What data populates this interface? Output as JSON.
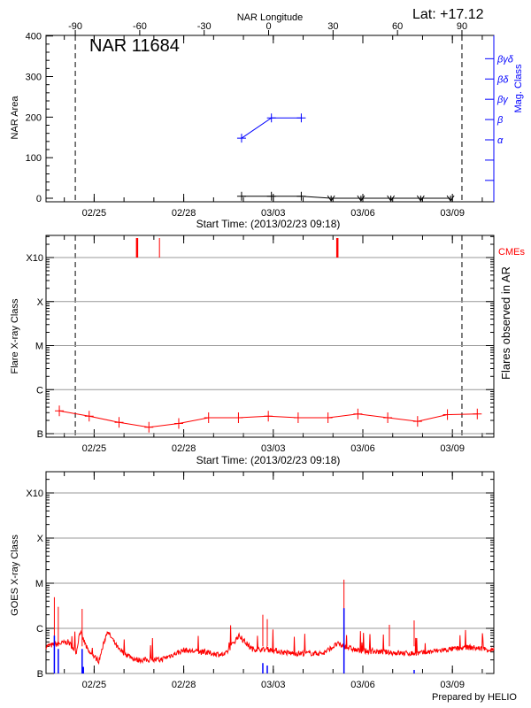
{
  "header": {
    "lat_label": "Lat: +17.12",
    "footer": "Prepared by HELIO"
  },
  "colors": {
    "axis": "#000000",
    "mag_class": "#0000ff",
    "flare": "#ff0000",
    "cme": "#ff0000",
    "goes_flux": "#ff0000",
    "goes_events": "#0000ff",
    "grid": "#999999"
  },
  "chart_data": [
    {
      "type": "line",
      "title": "NAR 11684",
      "top_xlabel": "NAR Longitude",
      "top_xticks": [
        -90,
        -60,
        -30,
        0,
        30,
        60,
        90
      ],
      "xlabel": "Start Time: (2013/02/23 09:18)",
      "ylabel": "NAR Area",
      "y2label": "Mag. Class",
      "xlim": [
        "2013-02-23T09:18",
        "2013-03-10T09:18"
      ],
      "xticks": [
        {
          "date": "2013-02-25T00:00",
          "label": "02/25"
        },
        {
          "date": "2013-02-28T00:00",
          "label": "02/28"
        },
        {
          "date": "2013-03-03T00:00",
          "label": "03/03"
        },
        {
          "date": "2013-03-06T00:00",
          "label": "03/06"
        },
        {
          "date": "2013-03-09T00:00",
          "label": "03/09"
        }
      ],
      "ylim": [
        0,
        400
      ],
      "yticks": [
        0,
        100,
        200,
        300,
        400
      ],
      "y2_levels": [
        "",
        "",
        "α",
        "β",
        "βγ",
        "βδ",
        "βγδ"
      ],
      "limb_lines": [
        "2013-02-24T08:50",
        "2013-03-09T07:40"
      ],
      "area": {
        "x": [
          "2013-03-01T22:30",
          "2013-03-02T22:30",
          "2013-03-03T22:30",
          "2013-03-04T22:30",
          "2013-03-05T22:30",
          "2013-03-06T22:30",
          "2013-03-07T22:30",
          "2013-03-08T22:30"
        ],
        "y": [
          5,
          5,
          5,
          0,
          0,
          0,
          0,
          0
        ]
      },
      "mag_class": {
        "x": [
          "2013-03-01T22:30",
          "2013-03-02T22:30",
          "2013-03-03T22:30"
        ],
        "y": [
          "α",
          "β",
          "β"
        ]
      }
    },
    {
      "type": "line",
      "xlabel": "Start Time: (2013/02/23 09:18)",
      "ylabel": "Flare X-ray Class",
      "y2label": "Flares observed in AR",
      "cme_label": "CMEs",
      "yscale": "log",
      "yticks": [
        {
          "label": "B",
          "class": "B1"
        },
        {
          "label": "C",
          "class": "C1"
        },
        {
          "label": "M",
          "class": "M1"
        },
        {
          "label": "X",
          "class": "X1"
        },
        {
          "label": "X10",
          "class": "X10"
        }
      ],
      "grid": true,
      "limb_lines": [
        "2013-02-24T08:50",
        "2013-03-09T07:40"
      ],
      "flares": {
        "x": [
          "2013-02-23T20:00",
          "2013-02-24T20:00",
          "2013-02-25T20:00",
          "2013-02-26T20:00",
          "2013-02-27T20:00",
          "2013-02-28T20:00",
          "2013-03-01T20:00",
          "2013-03-02T20:00",
          "2013-03-03T20:00",
          "2013-03-04T20:00",
          "2013-03-05T20:00",
          "2013-03-06T20:00",
          "2013-03-07T20:00",
          "2013-03-08T20:00",
          "2013-03-09T20:00"
        ],
        "y": [
          "B3.3",
          "B2.5",
          "B1.8",
          "B1.4",
          "B1.7",
          "B2.3",
          "B2.3",
          "B2.5",
          "B2.3",
          "B2.3",
          "B2.8",
          "B2.3",
          "B1.9",
          "B2.7",
          "B2.8"
        ]
      },
      "cmes": [
        {
          "date": "2013-02-26T10:30",
          "width": "wide"
        },
        {
          "date": "2013-02-27T04:30",
          "width": "narrow"
        },
        {
          "date": "2013-03-05T03:30",
          "width": "wide"
        }
      ]
    },
    {
      "type": "line",
      "ylabel": "GOES X-ray Class",
      "yscale": "log",
      "grid": true,
      "background": {
        "x": [
          "2013-02-23T09:18",
          "2013-02-24T03:05",
          "2013-02-24T09:45",
          "2013-02-24T12:30",
          "2013-02-24T19:25",
          "2013-02-25T03:50",
          "2013-02-25T10:30",
          "2013-02-25T20:05",
          "2013-02-26T09:45",
          "2013-02-27T04:55",
          "2013-02-28T00:10",
          "2013-02-28T22:00",
          "2013-03-01T09:18",
          "2013-03-01T20:05",
          "2013-03-02T06:55",
          "2013-03-02T23:10",
          "2013-03-03T12:55",
          "2013-03-04T16:15",
          "2013-03-05T03:20",
          "2013-03-05T19:40",
          "2013-03-07T09:18",
          "2013-03-07T21:18",
          "2013-03-08T16:30",
          "2013-03-09T14:05",
          "2013-03-10T09:18"
        ],
        "y": [
          "B4.0",
          "B5.0",
          "B3.0",
          "B8.7",
          "B3.0",
          "B1.9",
          "B8.7",
          "B3.3",
          "B2.0",
          "B2.0",
          "B3.3",
          "B2.8",
          "B2.6",
          "B6.9",
          "B3.5",
          "B3.3",
          "B2.8",
          "B2.8",
          "B4.5",
          "B3.2",
          "B2.8",
          "B2.8",
          "B3.3",
          "B3.8",
          "B3.3"
        ]
      },
      "peaks": [
        {
          "date": "2013-02-23T16:00",
          "class": "C4.9"
        },
        {
          "date": "2013-02-23T19:10",
          "class": "C3.0"
        },
        {
          "date": "2013-02-24T14:20",
          "class": "C2.7"
        },
        {
          "date": "2013-03-02T15:35",
          "class": "C2.0"
        },
        {
          "date": "2013-03-02T19:10",
          "class": "C1.6"
        },
        {
          "date": "2013-03-05T08:50",
          "class": "M1.2"
        },
        {
          "date": "2013-03-06T21:20",
          "class": "C1.2"
        },
        {
          "date": "2013-03-07T17:15",
          "class": "C1.5"
        }
      ],
      "events": [
        {
          "date": "2013-02-23T16:00",
          "class": "B6.9"
        },
        {
          "date": "2013-02-23T19:10",
          "class": "B3.5"
        },
        {
          "date": "2013-02-24T14:20",
          "class": "B3.5"
        },
        {
          "date": "2013-02-24T15:20",
          "class": "B1.4"
        },
        {
          "date": "2013-03-02T15:35",
          "class": "B1.7"
        },
        {
          "date": "2013-03-02T19:10",
          "class": "B1.5"
        },
        {
          "date": "2013-03-05T08:50",
          "class": "C2.8"
        },
        {
          "date": "2013-03-07T17:15",
          "class": "B1.2"
        }
      ]
    }
  ]
}
